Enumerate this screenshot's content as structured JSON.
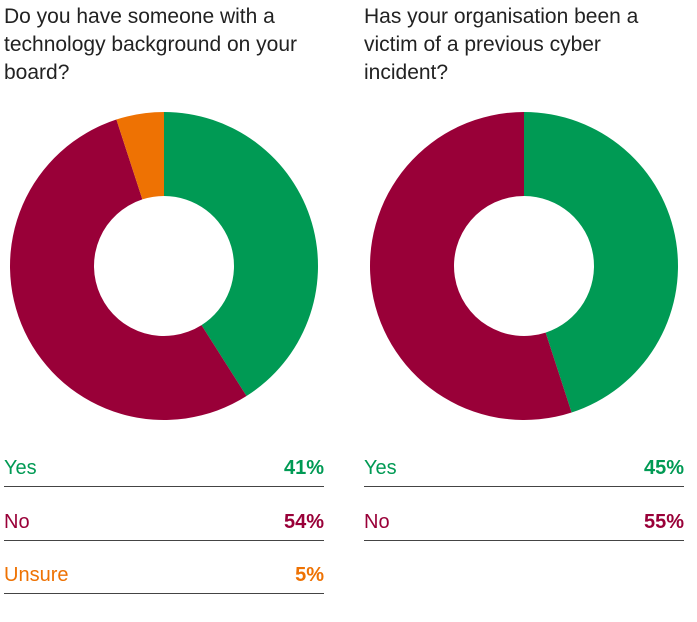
{
  "chart_data": [
    {
      "type": "donut",
      "title": "Do you have someone with a technology background on your board?",
      "categories": [
        "Yes",
        "No",
        "Unsure"
      ],
      "values": [
        41,
        54,
        5
      ],
      "value_labels": [
        "41%",
        "54%",
        "5%"
      ],
      "colors": [
        "#009a54",
        "#990038",
        "#ee7203"
      ]
    },
    {
      "type": "donut",
      "title": "Has your organisation been a victim of a previous cyber incident?",
      "categories": [
        "Yes",
        "No"
      ],
      "values": [
        45,
        55
      ],
      "value_labels": [
        "45%",
        "55%"
      ],
      "colors": [
        "#009a54",
        "#990038"
      ]
    }
  ]
}
